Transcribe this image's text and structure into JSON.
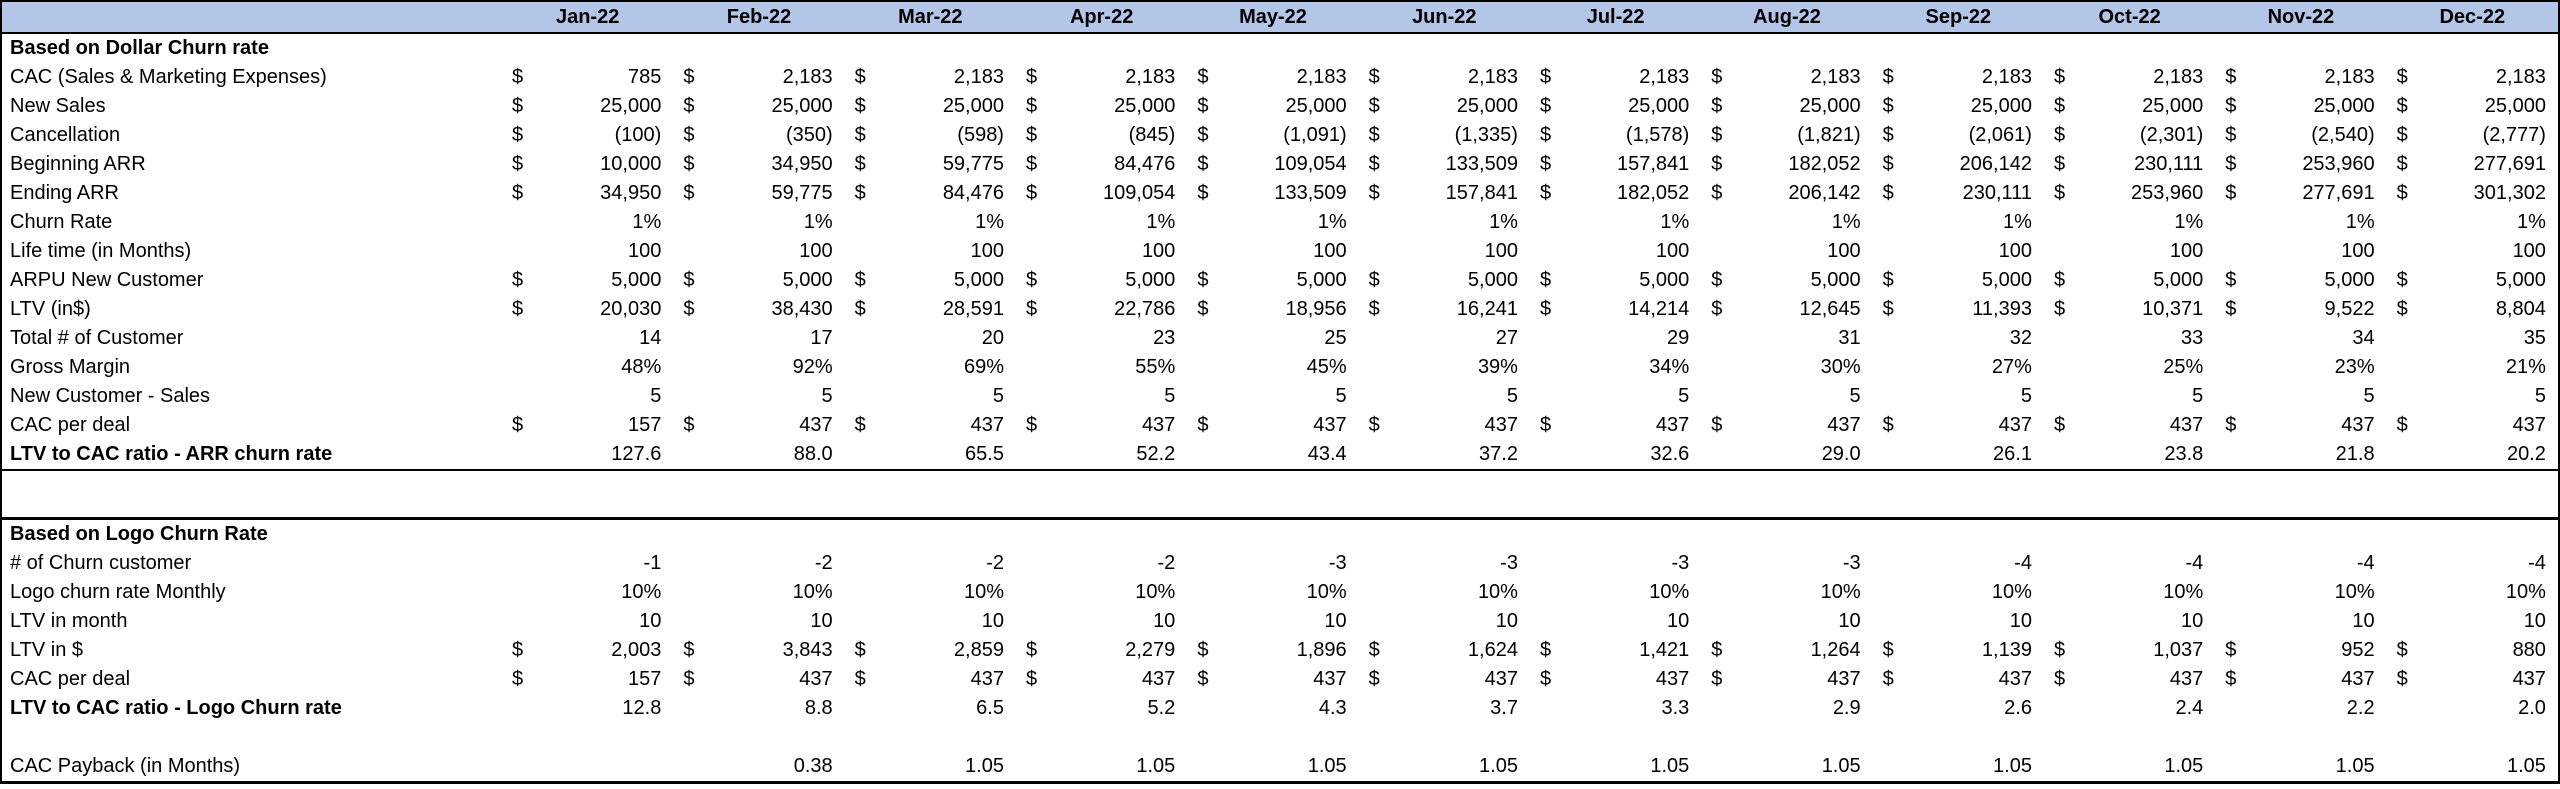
{
  "colors": {
    "header_background": "#b4c6e7",
    "border": "#000000"
  },
  "table": {
    "currency_symbol": "$",
    "months": [
      "Jan-22",
      "Feb-22",
      "Mar-22",
      "Apr-22",
      "May-22",
      "Jun-22",
      "Jul-22",
      "Aug-22",
      "Sep-22",
      "Oct-22",
      "Nov-22",
      "Dec-22"
    ],
    "sections": [
      {
        "title": "Based on Dollar Churn rate",
        "rows": [
          {
            "label": "CAC (Sales & Marketing Expenses)",
            "dollar": true,
            "values": [
              "785",
              "2,183",
              "2,183",
              "2,183",
              "2,183",
              "2,183",
              "2,183",
              "2,183",
              "2,183",
              "2,183",
              "2,183",
              "2,183"
            ]
          },
          {
            "label": "New Sales",
            "dollar": true,
            "values": [
              "25,000",
              "25,000",
              "25,000",
              "25,000",
              "25,000",
              "25,000",
              "25,000",
              "25,000",
              "25,000",
              "25,000",
              "25,000",
              "25,000"
            ]
          },
          {
            "label": "Cancellation",
            "dollar": true,
            "values": [
              "(100)",
              "(350)",
              "(598)",
              "(845)",
              "(1,091)",
              "(1,335)",
              "(1,578)",
              "(1,821)",
              "(2,061)",
              "(2,301)",
              "(2,540)",
              "(2,777)"
            ]
          },
          {
            "label": "Beginning ARR",
            "dollar": true,
            "values": [
              "10,000",
              "34,950",
              "59,775",
              "84,476",
              "109,054",
              "133,509",
              "157,841",
              "182,052",
              "206,142",
              "230,111",
              "253,960",
              "277,691"
            ]
          },
          {
            "label": "Ending ARR",
            "dollar": true,
            "values": [
              "34,950",
              "59,775",
              "84,476",
              "109,054",
              "133,509",
              "157,841",
              "182,052",
              "206,142",
              "230,111",
              "253,960",
              "277,691",
              "301,302"
            ]
          },
          {
            "label": "Churn Rate",
            "values": [
              "1%",
              "1%",
              "1%",
              "1%",
              "1%",
              "1%",
              "1%",
              "1%",
              "1%",
              "1%",
              "1%",
              "1%"
            ]
          },
          {
            "label": "Life time (in Months)",
            "values": [
              "100",
              "100",
              "100",
              "100",
              "100",
              "100",
              "100",
              "100",
              "100",
              "100",
              "100",
              "100"
            ]
          },
          {
            "label": "ARPU New Customer",
            "dollar": true,
            "values": [
              "5,000",
              "5,000",
              "5,000",
              "5,000",
              "5,000",
              "5,000",
              "5,000",
              "5,000",
              "5,000",
              "5,000",
              "5,000",
              "5,000"
            ]
          },
          {
            "label": "LTV (in$)",
            "dollar": true,
            "values": [
              "20,030",
              "38,430",
              "28,591",
              "22,786",
              "18,956",
              "16,241",
              "14,214",
              "12,645",
              "11,393",
              "10,371",
              "9,522",
              "8,804"
            ]
          },
          {
            "label": "Total # of Customer",
            "values": [
              "14",
              "17",
              "20",
              "23",
              "25",
              "27",
              "29",
              "31",
              "32",
              "33",
              "34",
              "35"
            ]
          },
          {
            "label": "Gross Margin",
            "values": [
              "48%",
              "92%",
              "69%",
              "55%",
              "45%",
              "39%",
              "34%",
              "30%",
              "27%",
              "25%",
              "23%",
              "21%"
            ]
          },
          {
            "label": "New Customer - Sales",
            "values": [
              "5",
              "5",
              "5",
              "5",
              "5",
              "5",
              "5",
              "5",
              "5",
              "5",
              "5",
              "5"
            ]
          },
          {
            "label": "CAC per deal",
            "dollar": true,
            "values": [
              "157",
              "437",
              "437",
              "437",
              "437",
              "437",
              "437",
              "437",
              "437",
              "437",
              "437",
              "437"
            ]
          },
          {
            "label": "LTV to CAC ratio - ARR churn rate",
            "bold": true,
            "underline": true,
            "values": [
              "127.6",
              "88.0",
              "65.5",
              "52.2",
              "43.4",
              "37.2",
              "32.6",
              "29.0",
              "26.1",
              "23.8",
              "21.8",
              "20.2"
            ]
          }
        ]
      },
      {
        "title": "Based on Logo Churn Rate",
        "rows": [
          {
            "label": "# of Churn customer",
            "values": [
              "-1",
              "-2",
              "-2",
              "-2",
              "-3",
              "-3",
              "-3",
              "-3",
              "-4",
              "-4",
              "-4",
              "-4"
            ]
          },
          {
            "label": "Logo churn rate Monthly",
            "values": [
              "10%",
              "10%",
              "10%",
              "10%",
              "10%",
              "10%",
              "10%",
              "10%",
              "10%",
              "10%",
              "10%",
              "10%"
            ]
          },
          {
            "label": "LTV in month",
            "values": [
              "10",
              "10",
              "10",
              "10",
              "10",
              "10",
              "10",
              "10",
              "10",
              "10",
              "10",
              "10"
            ]
          },
          {
            "label": "LTV in $",
            "dollar": true,
            "values": [
              "2,003",
              "3,843",
              "2,859",
              "2,279",
              "1,896",
              "1,624",
              "1,421",
              "1,264",
              "1,139",
              "1,037",
              "952",
              "880"
            ]
          },
          {
            "label": "CAC per deal",
            "dollar": true,
            "values": [
              "157",
              "437",
              "437",
              "437",
              "437",
              "437",
              "437",
              "437",
              "437",
              "437",
              "437",
              "437"
            ]
          },
          {
            "label": "LTV to CAC ratio - Logo Churn rate",
            "bold": true,
            "values": [
              "12.8",
              "8.8",
              "6.5",
              "5.2",
              "4.3",
              "3.7",
              "3.3",
              "2.9",
              "2.6",
              "2.4",
              "2.2",
              "2.0"
            ]
          }
        ]
      }
    ],
    "footer_row": {
      "label": "CAC Payback (in Months)",
      "values": [
        "",
        "0.38",
        "1.05",
        "1.05",
        "1.05",
        "1.05",
        "1.05",
        "1.05",
        "1.05",
        "1.05",
        "1.05",
        "1.05"
      ]
    }
  }
}
